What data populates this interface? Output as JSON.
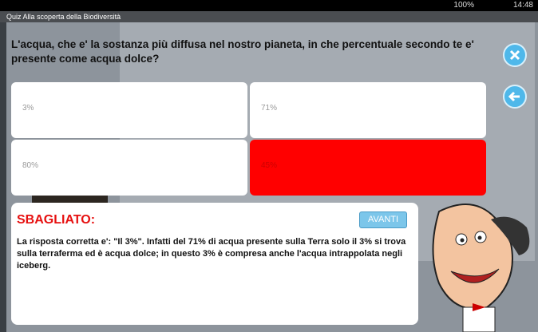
{
  "status_bar": {
    "battery": "100%",
    "time": "14:48"
  },
  "app_bar": {
    "title": "Quiz Alla scoperta della Biodiversità"
  },
  "question": "L'acqua, che e' la sostanza più diffusa nel nostro pianeta, in che percentuale secondo te e' presente come acqua dolce?",
  "answers": [
    "3%",
    "71%",
    "80%",
    "45%"
  ],
  "feedback": {
    "title": "SBAGLIATO:",
    "next_button": "AVANTI",
    "text": "La risposta corretta e': \"Il 3%\". Infatti del 71% di acqua presente sulla Terra solo il 3% si trova sulla terraferma ed è acqua dolce; in questo 3% è compresa anche l'acqua intrappolata negli iceberg."
  }
}
